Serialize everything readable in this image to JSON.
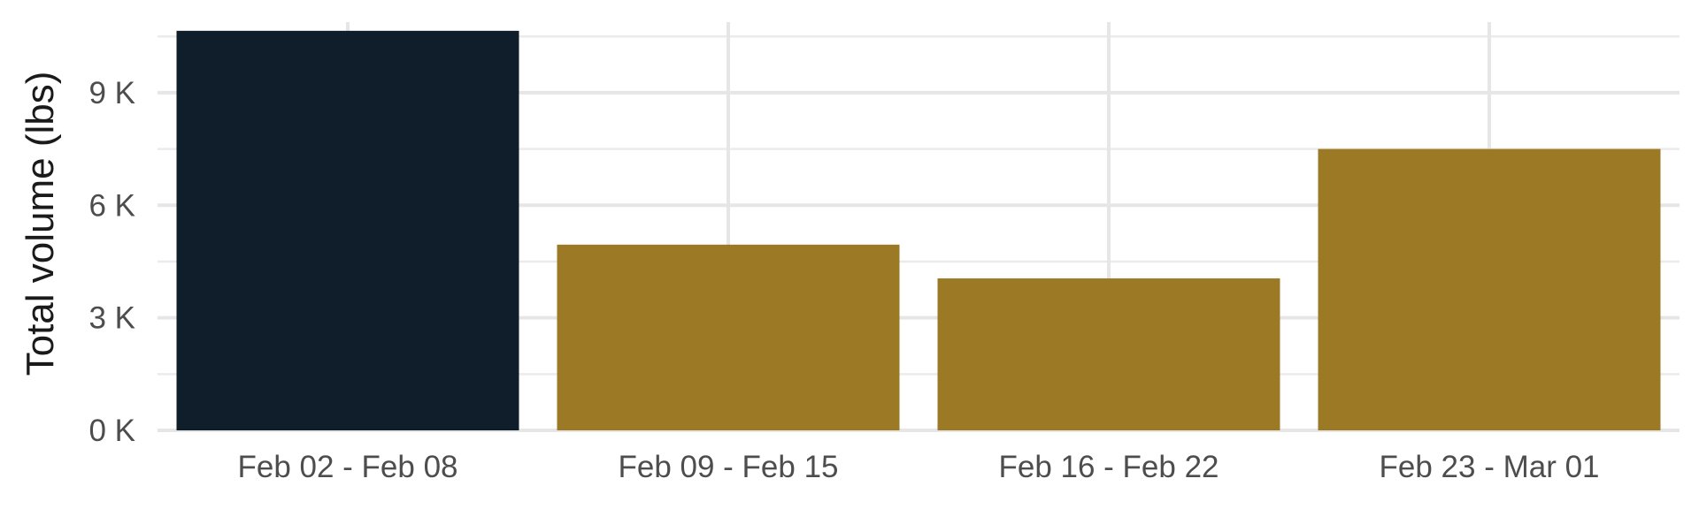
{
  "chart_data": {
    "type": "bar",
    "title": "",
    "xlabel": "",
    "ylabel": "Total volume (lbs)",
    "categories": [
      "Feb 02 - Feb 08",
      "Feb 09 - Feb 15",
      "Feb 16 - Feb 22",
      "Feb 23 - Mar 01"
    ],
    "values": [
      10650,
      4950,
      4050,
      7500
    ],
    "bar_colors": [
      "#101d2a",
      "#9c7924",
      "#9c7924",
      "#9c7924"
    ],
    "ylim": [
      0,
      11000
    ],
    "y_ticks": [
      0,
      3000,
      6000,
      9000
    ],
    "y_tick_labels": [
      "0 K",
      "3 K",
      "6 K",
      "9 K"
    ],
    "y_minor_ticks": [
      1500,
      4500,
      7500,
      10500
    ],
    "grid": true,
    "legend": "none"
  }
}
